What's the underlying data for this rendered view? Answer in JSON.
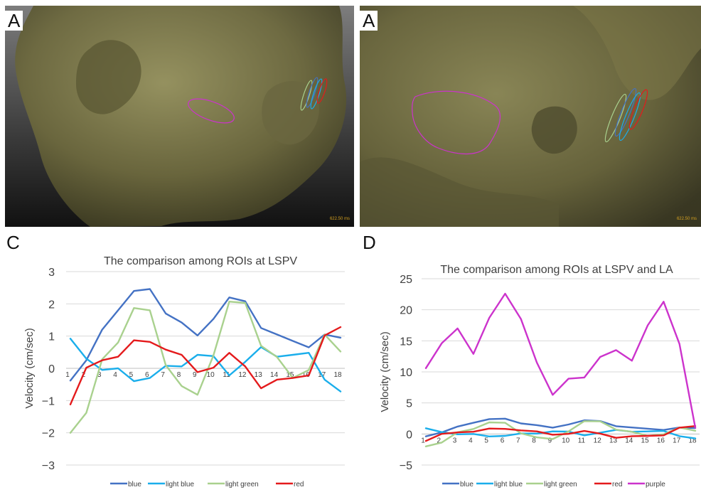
{
  "panels": {
    "top_left": {
      "letter": "A",
      "time_label": "622.50 ms"
    },
    "top_right": {
      "letter": "A",
      "time_label": "622.50 ms"
    },
    "bottom_left": {
      "letter": "C"
    },
    "bottom_right": {
      "letter": "D"
    }
  },
  "colors": {
    "blue": "#4472C4",
    "light_blue": "#1AAEEB",
    "light_green": "#A9D18E",
    "red": "#E41A1C",
    "purple": "#CC33CC"
  },
  "chart_data": [
    {
      "type": "line",
      "title": "The comparison among ROIs at LSPV",
      "xlabel": "",
      "ylabel": "Velocity (cm/sec)",
      "x": [
        "1",
        "2",
        "3",
        "4",
        "5",
        "6",
        "7",
        "8",
        "9",
        "10",
        "11",
        "12",
        "13",
        "14",
        "15",
        "16",
        "17",
        "18"
      ],
      "ylim": [
        -3,
        3
      ],
      "yticks": [
        "3",
        "2",
        "1",
        "0",
        "−1",
        "−2",
        "−3"
      ],
      "grid": true,
      "legend": "bottom",
      "series": [
        {
          "name": "blue",
          "color": "#4472C4",
          "values": [
            -0.38,
            0.25,
            1.2,
            1.8,
            2.4,
            2.46,
            1.7,
            1.42,
            1.02,
            1.53,
            2.2,
            2.08,
            1.25,
            1.05,
            0.85,
            0.65,
            1.05,
            0.95
          ]
        },
        {
          "name": "light blue",
          "color": "#1AAEEB",
          "values": [
            0.92,
            0.3,
            -0.05,
            0.0,
            -0.4,
            -0.3,
            0.08,
            0.06,
            0.42,
            0.38,
            -0.22,
            0.2,
            0.66,
            0.36,
            0.42,
            0.48,
            -0.35,
            -0.72
          ]
        },
        {
          "name": "light green",
          "color": "#A9D18E",
          "values": [
            -2.0,
            -1.38,
            0.28,
            0.8,
            1.87,
            1.8,
            0.1,
            -0.55,
            -0.82,
            0.4,
            2.07,
            2.03,
            0.7,
            0.35,
            -0.3,
            -0.05,
            1.05,
            0.52
          ]
        },
        {
          "name": "red",
          "color": "#E41A1C",
          "values": [
            -1.12,
            0.02,
            0.25,
            0.36,
            0.87,
            0.82,
            0.58,
            0.42,
            -0.12,
            0.02,
            0.48,
            0.06,
            -0.62,
            -0.35,
            -0.3,
            -0.22,
            1.02,
            1.28
          ]
        }
      ]
    },
    {
      "type": "line",
      "title": "The comparison among ROIs at LSPV and LA",
      "xlabel": "",
      "ylabel": "Velocity (cm/sec)",
      "x": [
        "1",
        "2",
        "3",
        "4",
        "5",
        "6",
        "7",
        "8",
        "9",
        "10",
        "11",
        "12",
        "13",
        "14",
        "15",
        "16",
        "17",
        "18"
      ],
      "ylim": [
        -5,
        25
      ],
      "yticks": [
        "25",
        "20",
        "15",
        "10",
        "5",
        "0",
        "−5"
      ],
      "grid": true,
      "legend": "bottom",
      "series": [
        {
          "name": "blue",
          "color": "#4472C4",
          "values": [
            -0.38,
            0.25,
            1.2,
            1.8,
            2.4,
            2.46,
            1.7,
            1.42,
            1.02,
            1.53,
            2.2,
            2.08,
            1.25,
            1.05,
            0.85,
            0.65,
            1.05,
            0.95
          ]
        },
        {
          "name": "light blue",
          "color": "#1AAEEB",
          "values": [
            0.92,
            0.3,
            -0.05,
            0.0,
            -0.4,
            -0.3,
            0.08,
            0.06,
            0.42,
            0.38,
            -0.22,
            0.2,
            0.66,
            0.36,
            0.42,
            0.48,
            -0.35,
            -0.72
          ]
        },
        {
          "name": "light green",
          "color": "#A9D18E",
          "values": [
            -2.0,
            -1.38,
            0.28,
            0.8,
            1.87,
            1.8,
            0.1,
            -0.55,
            -0.82,
            0.4,
            2.07,
            2.03,
            0.7,
            0.35,
            -0.3,
            -0.05,
            1.05,
            0.52
          ]
        },
        {
          "name": "red",
          "color": "#E41A1C",
          "values": [
            -1.12,
            0.02,
            0.25,
            0.36,
            0.87,
            0.82,
            0.58,
            0.42,
            -0.12,
            0.02,
            0.48,
            0.06,
            -0.62,
            -0.35,
            -0.3,
            -0.22,
            1.02,
            1.28
          ]
        },
        {
          "name": "purple",
          "color": "#CC33CC",
          "values": [
            10.6,
            14.6,
            17.0,
            12.9,
            18.7,
            22.6,
            18.5,
            11.5,
            6.3,
            8.9,
            9.1,
            12.4,
            13.5,
            11.8,
            17.5,
            21.3,
            14.5,
            1.0
          ]
        }
      ]
    }
  ]
}
